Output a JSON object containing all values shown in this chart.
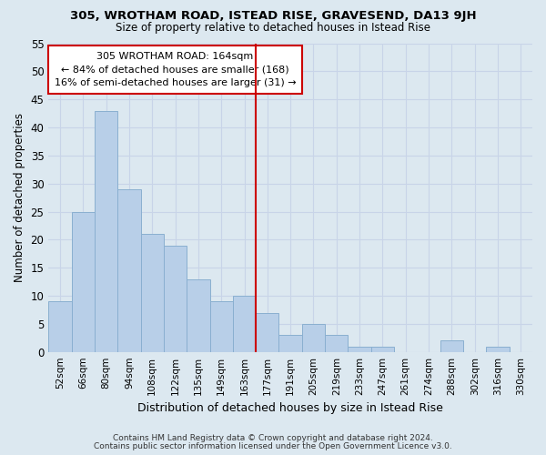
{
  "title": "305, WROTHAM ROAD, ISTEAD RISE, GRAVESEND, DA13 9JH",
  "subtitle": "Size of property relative to detached houses in Istead Rise",
  "xlabel": "Distribution of detached houses by size in Istead Rise",
  "ylabel": "Number of detached properties",
  "bar_labels": [
    "52sqm",
    "66sqm",
    "80sqm",
    "94sqm",
    "108sqm",
    "122sqm",
    "135sqm",
    "149sqm",
    "163sqm",
    "177sqm",
    "191sqm",
    "205sqm",
    "219sqm",
    "233sqm",
    "247sqm",
    "261sqm",
    "274sqm",
    "288sqm",
    "302sqm",
    "316sqm",
    "330sqm"
  ],
  "bar_values": [
    9,
    25,
    43,
    29,
    21,
    19,
    13,
    9,
    10,
    7,
    3,
    5,
    3,
    1,
    1,
    0,
    0,
    2,
    0,
    1,
    0
  ],
  "bar_color": "#b8cfe8",
  "bar_edge_color": "#8aafd0",
  "property_line_idx": 8,
  "property_label": "305 WROTHAM ROAD: 164sqm",
  "annotation_line1": "← 84% of detached houses are smaller (168)",
  "annotation_line2": "16% of semi-detached houses are larger (31) →",
  "annotation_box_color": "#ffffff",
  "annotation_box_edge": "#cc0000",
  "vline_color": "#cc0000",
  "ylim": [
    0,
    55
  ],
  "yticks": [
    0,
    5,
    10,
    15,
    20,
    25,
    30,
    35,
    40,
    45,
    50,
    55
  ],
  "grid_color": "#c8d4e8",
  "bg_color": "#dce8f0",
  "footer_line1": "Contains HM Land Registry data © Crown copyright and database right 2024.",
  "footer_line2": "Contains public sector information licensed under the Open Government Licence v3.0."
}
